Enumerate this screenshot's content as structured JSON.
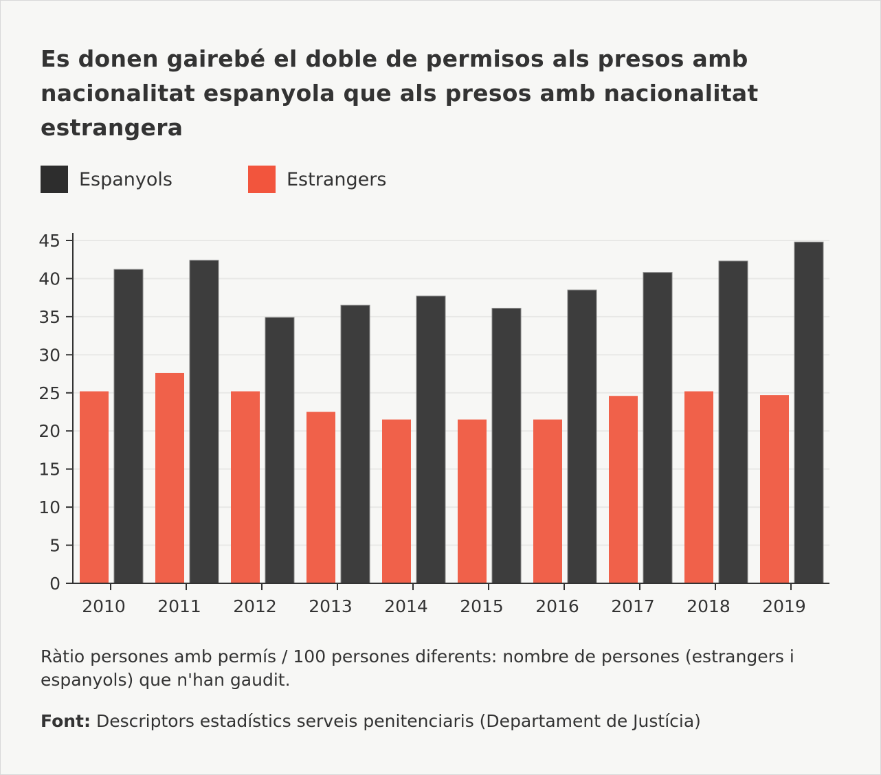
{
  "chart_data": {
    "type": "bar",
    "title": "Es donen gairebé el doble de permisos als presos amb nacionalitat espanyola que als presos amb nacionalitat estrangera",
    "categories": [
      "2010",
      "2011",
      "2012",
      "2013",
      "2014",
      "2015",
      "2016",
      "2017",
      "2018",
      "2019"
    ],
    "series": [
      {
        "name": "Estrangers",
        "color": "#f0614a",
        "values": [
          25.2,
          27.6,
          25.2,
          22.5,
          21.5,
          21.5,
          21.5,
          24.6,
          25.2,
          24.7
        ]
      },
      {
        "name": "Espanyols",
        "color": "#3d3d3d",
        "values": [
          41.2,
          42.4,
          34.9,
          36.5,
          37.7,
          36.1,
          38.5,
          40.8,
          42.3,
          44.8
        ]
      }
    ],
    "legend_order": [
      "Espanyols",
      "Estrangers"
    ],
    "legend_position": "top-left",
    "yticks": [
      0,
      5,
      10,
      15,
      20,
      25,
      30,
      35,
      40,
      45
    ],
    "ylim": [
      0,
      45
    ],
    "grid": true,
    "xlabel": "",
    "ylabel": ""
  },
  "note": "Ràtio persones amb permís / 100 persones diferents: nombre de persones (estrangers i espanyols) que n'han gaudit.",
  "source": {
    "label": "Font:",
    "text": "Descriptors estadístics serveis penitenciaris (Departament de Justícia)"
  }
}
